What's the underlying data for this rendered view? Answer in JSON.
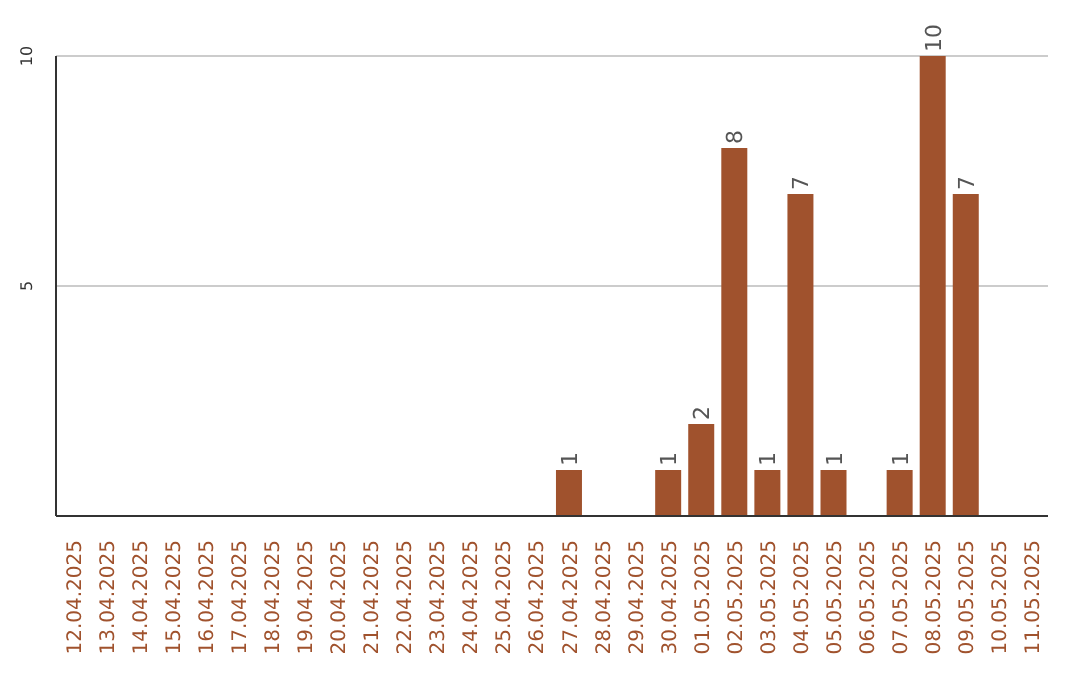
{
  "chart_data": {
    "type": "bar",
    "categories": [
      "12.04.2025",
      "13.04.2025",
      "14.04.2025",
      "15.04.2025",
      "16.04.2025",
      "17.04.2025",
      "18.04.2025",
      "19.04.2025",
      "20.04.2025",
      "21.04.2025",
      "22.04.2025",
      "23.04.2025",
      "24.04.2025",
      "25.04.2025",
      "26.04.2025",
      "27.04.2025",
      "28.04.2025",
      "29.04.2025",
      "30.04.2025",
      "01.05.2025",
      "02.05.2025",
      "03.05.2025",
      "04.05.2025",
      "05.05.2025",
      "06.05.2025",
      "07.05.2025",
      "08.05.2025",
      "09.05.2025",
      "10.05.2025",
      "11.05.2025"
    ],
    "values": [
      0,
      0,
      0,
      0,
      0,
      0,
      0,
      0,
      0,
      0,
      0,
      0,
      0,
      0,
      0,
      1,
      0,
      0,
      1,
      2,
      8,
      1,
      7,
      1,
      0,
      1,
      10,
      7,
      0,
      0
    ],
    "value_labels": [
      null,
      null,
      null,
      null,
      null,
      null,
      null,
      null,
      null,
      null,
      null,
      null,
      null,
      null,
      null,
      "1",
      null,
      null,
      "1",
      "2",
      "8",
      "1",
      "7",
      "1",
      null,
      "1",
      "10",
      "7",
      null,
      null
    ],
    "color": "#a0522d",
    "ylim": [
      0,
      10
    ],
    "yticks": [
      5,
      10
    ],
    "grid": "y"
  }
}
